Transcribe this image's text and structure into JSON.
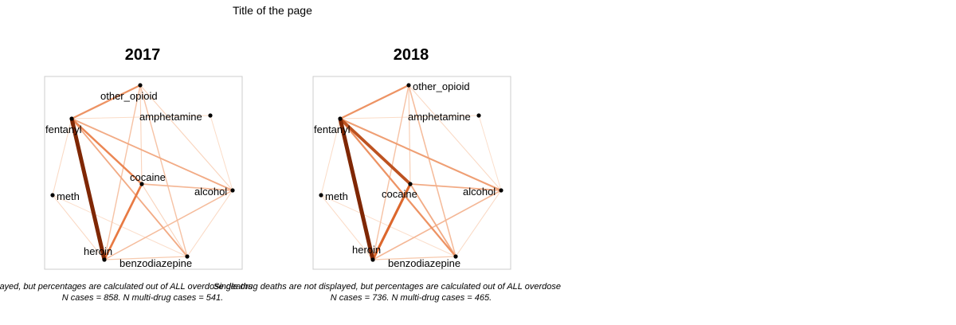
{
  "page": {
    "title": "Title of the page"
  },
  "panels": [
    {
      "year": "2017",
      "caption_line1": "layed, but percentages are calculated out of ALL overdose deaths",
      "caption_line2": "N cases = 858. N multi-drug cases = 541.",
      "nodes": [
        {
          "id": "other_opioid",
          "label": "other_opioid"
        },
        {
          "id": "amphetamine",
          "label": "amphetamine"
        },
        {
          "id": "fentanyl",
          "label": "fentanyl"
        },
        {
          "id": "cocaine",
          "label": "cocaine"
        },
        {
          "id": "alcohol",
          "label": "alcohol"
        },
        {
          "id": "meth",
          "label": "meth"
        },
        {
          "id": "heroin",
          "label": "heroin"
        },
        {
          "id": "benzodiazepine",
          "label": "benzodiazepine"
        }
      ],
      "edges": [
        {
          "from": "fentanyl",
          "to": "heroin",
          "weight": 1.0
        },
        {
          "from": "fentanyl",
          "to": "other_opioid",
          "weight": 0.35
        },
        {
          "from": "fentanyl",
          "to": "cocaine",
          "weight": 0.4
        },
        {
          "from": "fentanyl",
          "to": "alcohol",
          "weight": 0.25
        },
        {
          "from": "fentanyl",
          "to": "benzodiazepine",
          "weight": 0.25
        },
        {
          "from": "heroin",
          "to": "cocaine",
          "weight": 0.45
        },
        {
          "from": "heroin",
          "to": "alcohol",
          "weight": 0.18
        },
        {
          "from": "heroin",
          "to": "other_opioid",
          "weight": 0.15
        },
        {
          "from": "heroin",
          "to": "benzodiazepine",
          "weight": 0.12
        },
        {
          "from": "cocaine",
          "to": "alcohol",
          "weight": 0.2
        },
        {
          "from": "cocaine",
          "to": "benzodiazepine",
          "weight": 0.08
        },
        {
          "from": "other_opioid",
          "to": "benzodiazepine",
          "weight": 0.15
        },
        {
          "from": "other_opioid",
          "to": "alcohol",
          "weight": 0.08
        },
        {
          "from": "other_opioid",
          "to": "cocaine",
          "weight": 0.08
        },
        {
          "from": "meth",
          "to": "fentanyl",
          "weight": 0.06
        },
        {
          "from": "meth",
          "to": "heroin",
          "weight": 0.06
        },
        {
          "from": "amphetamine",
          "to": "fentanyl",
          "weight": 0.05
        },
        {
          "from": "alcohol",
          "to": "benzodiazepine",
          "weight": 0.06
        },
        {
          "from": "amphetamine",
          "to": "alcohol",
          "weight": 0.05
        },
        {
          "from": "meth",
          "to": "benzodiazepine",
          "weight": 0.04
        }
      ]
    },
    {
      "year": "2018",
      "caption_line1": "Single drug deaths are not displayed, but percentages are calculated out of ALL overdose",
      "caption_line2": "N cases = 736. N multi-drug cases = 465.",
      "nodes": [
        {
          "id": "other_opioid",
          "label": "other_opioid"
        },
        {
          "id": "amphetamine",
          "label": "amphetamine"
        },
        {
          "id": "fentanyl",
          "label": "fentanyl"
        },
        {
          "id": "cocaine",
          "label": "cocaine"
        },
        {
          "id": "alcohol",
          "label": "alcohol"
        },
        {
          "id": "meth",
          "label": "meth"
        },
        {
          "id": "heroin",
          "label": "heroin"
        },
        {
          "id": "benzodiazepine",
          "label": "benzodiazepine"
        }
      ],
      "edges": [
        {
          "from": "fentanyl",
          "to": "heroin",
          "weight": 1.0
        },
        {
          "from": "fentanyl",
          "to": "cocaine",
          "weight": 0.7
        },
        {
          "from": "fentanyl",
          "to": "other_opioid",
          "weight": 0.35
        },
        {
          "from": "fentanyl",
          "to": "alcohol",
          "weight": 0.3
        },
        {
          "from": "fentanyl",
          "to": "benzodiazepine",
          "weight": 0.35
        },
        {
          "from": "heroin",
          "to": "cocaine",
          "weight": 0.55
        },
        {
          "from": "heroin",
          "to": "alcohol",
          "weight": 0.2
        },
        {
          "from": "heroin",
          "to": "other_opioid",
          "weight": 0.15
        },
        {
          "from": "heroin",
          "to": "benzodiazepine",
          "weight": 0.12
        },
        {
          "from": "cocaine",
          "to": "alcohol",
          "weight": 0.25
        },
        {
          "from": "cocaine",
          "to": "benzodiazepine",
          "weight": 0.25
        },
        {
          "from": "other_opioid",
          "to": "benzodiazepine",
          "weight": 0.18
        },
        {
          "from": "other_opioid",
          "to": "cocaine",
          "weight": 0.1
        },
        {
          "from": "other_opioid",
          "to": "alcohol",
          "weight": 0.06
        },
        {
          "from": "meth",
          "to": "fentanyl",
          "weight": 0.05
        },
        {
          "from": "meth",
          "to": "heroin",
          "weight": 0.05
        },
        {
          "from": "amphetamine",
          "to": "fentanyl",
          "weight": 0.05
        },
        {
          "from": "alcohol",
          "to": "benzodiazepine",
          "weight": 0.06
        },
        {
          "from": "amphetamine",
          "to": "alcohol",
          "weight": 0.04
        },
        {
          "from": "meth",
          "to": "benzodiazepine",
          "weight": 0.04
        }
      ]
    }
  ],
  "colors": {
    "edge_light": "#fde8d8",
    "edge_dark": "#7f2704",
    "node": "#000000",
    "frame": "#cccccc"
  }
}
